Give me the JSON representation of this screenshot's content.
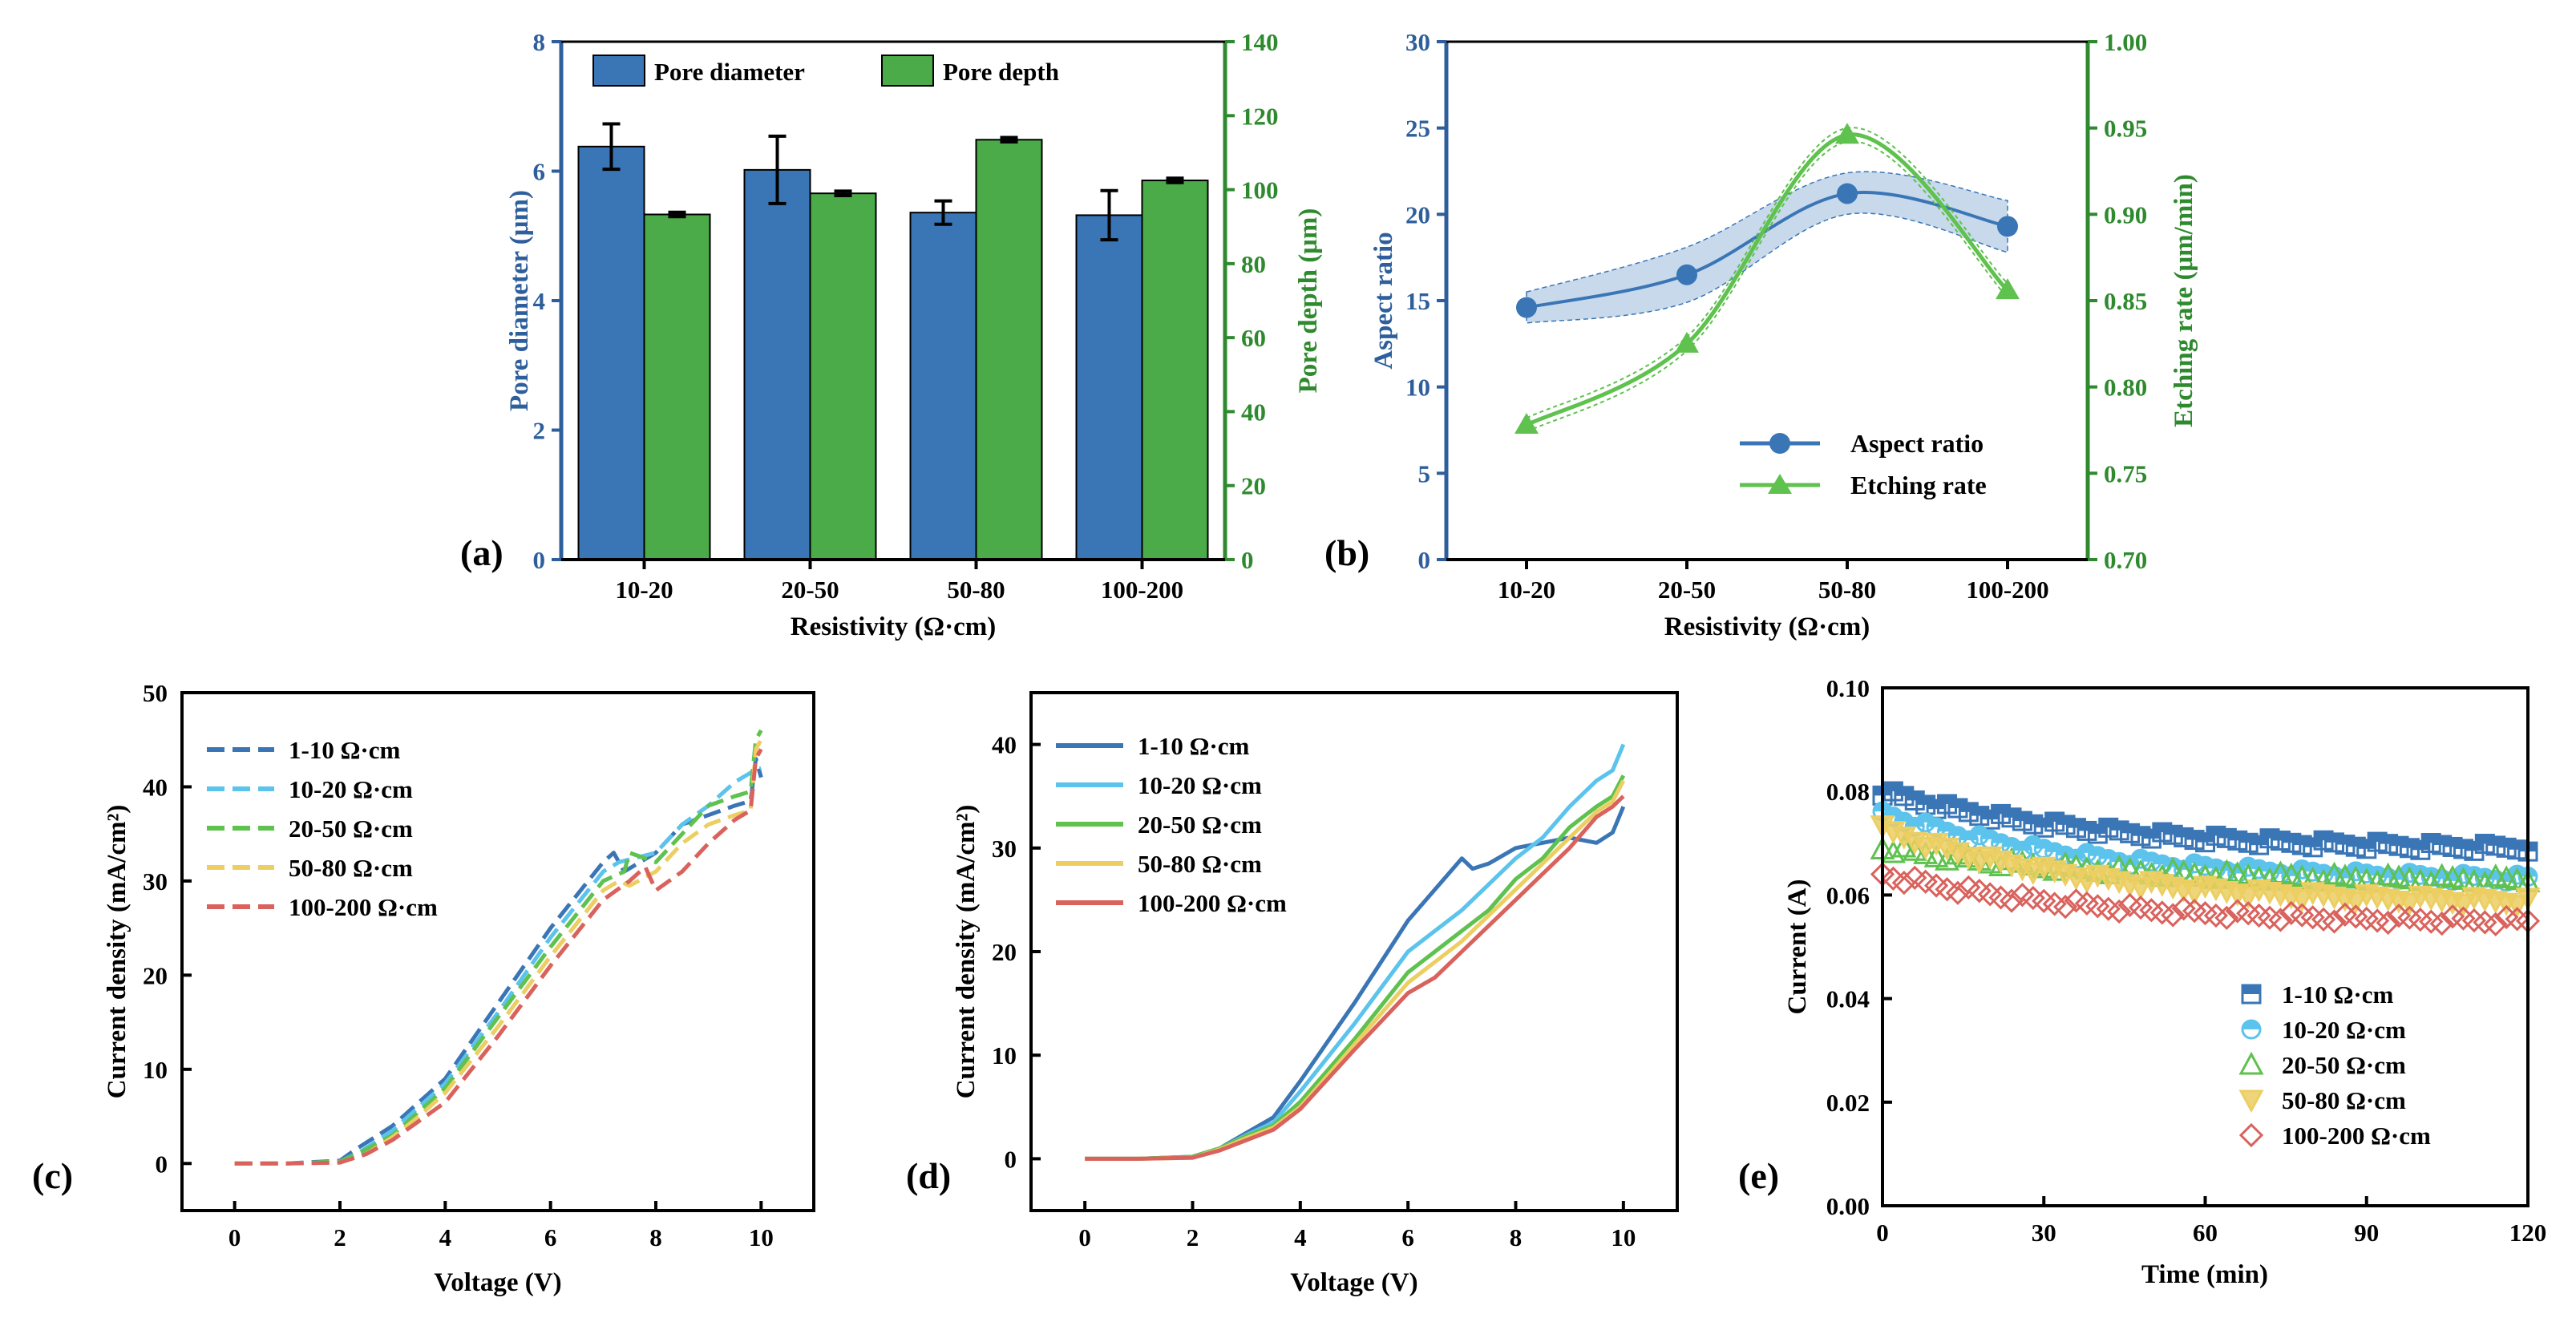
{
  "colors": {
    "blue": "#3a76b6",
    "green": "#4bab48",
    "lightblue": "#5bc3ec",
    "lightgreen": "#5fc14e",
    "yellow": "#ecce62",
    "red": "#d9625d",
    "axis": "#000000",
    "blueaxis": "#2e5f9c",
    "greenaxis": "#2f8a2f"
  },
  "chart_data": [
    {
      "panel": "(a)",
      "type": "bar",
      "categories": [
        "10-20",
        "20-50",
        "50-80",
        "100-200"
      ],
      "xlabel": "Resistivity (Ω·cm)",
      "ylabel": "Pore diameter (μm)",
      "y2label": "Pore depth (μm)",
      "ylim": [
        0,
        8
      ],
      "y2lim": [
        0,
        140
      ],
      "yticks": [
        "0",
        "2",
        "4",
        "6",
        "8"
      ],
      "y2ticks": [
        "0",
        "20",
        "40",
        "60",
        "80",
        "100",
        "120",
        "140"
      ],
      "series": [
        {
          "name": "Pore diameter",
          "axis": "left",
          "values": [
            6.38,
            6.02,
            5.36,
            5.32
          ],
          "errors": [
            0.35,
            0.52,
            0.18,
            0.38
          ]
        },
        {
          "name": "Pore depth",
          "axis": "right",
          "values": [
            93.3,
            99.0,
            113.5,
            102.5
          ],
          "errors": [
            0.6,
            0.6,
            0.6,
            0.6
          ]
        }
      ]
    },
    {
      "panel": "(b)",
      "type": "line",
      "categories": [
        "10-20",
        "20-50",
        "50-80",
        "100-200"
      ],
      "xlabel": "Resistivity (Ω·cm)",
      "ylabel": "Aspect ratio",
      "y2label": "Etching rate (μm/min)",
      "ylim": [
        0,
        30
      ],
      "y2lim": [
        0.7,
        1.0
      ],
      "yticks": [
        "0",
        "5",
        "10",
        "15",
        "20",
        "25",
        "30"
      ],
      "y2ticks": [
        "0.70",
        "0.75",
        "0.80",
        "0.85",
        "0.90",
        "0.95",
        "1.00"
      ],
      "legend_position": "lower-right",
      "series": [
        {
          "name": "Aspect ratio",
          "axis": "left",
          "values": [
            14.6,
            16.5,
            21.2,
            19.3
          ]
        },
        {
          "name": "Etching rate",
          "axis": "right",
          "values": [
            0.778,
            0.825,
            0.946,
            0.856
          ]
        }
      ]
    },
    {
      "panel": "(c)",
      "type": "line",
      "style": "dashed",
      "xlabel": "Voltage (V)",
      "ylabel": "Current density (mA/cm²)",
      "xlim": [
        -1,
        11
      ],
      "ylim": [
        -5,
        50
      ],
      "xticks": [
        "0",
        "2",
        "4",
        "6",
        "8",
        "10"
      ],
      "yticks": [
        "0",
        "10",
        "20",
        "30",
        "40",
        "50"
      ],
      "legend_position": "top-left",
      "series": [
        {
          "name": "1-10 Ω·cm",
          "x": [
            0,
            1,
            2,
            2.3,
            3,
            3.5,
            4,
            5,
            6,
            7,
            7.2,
            7.4,
            8,
            8.5,
            9,
            9.5,
            9.8,
            9.9,
            10
          ],
          "y": [
            0,
            0,
            0.3,
            1.5,
            4,
            6.5,
            9,
            17,
            25,
            32,
            33,
            31,
            33,
            36,
            37,
            38,
            38.5,
            43,
            41
          ]
        },
        {
          "name": "10-20 Ω·cm",
          "x": [
            0,
            1,
            2,
            2.4,
            3,
            3.5,
            4,
            5,
            6,
            7,
            7.3,
            8,
            8.5,
            9,
            9.5,
            9.8,
            10
          ],
          "y": [
            0,
            0,
            0.2,
            1.3,
            3.5,
            6,
            8.5,
            16,
            24,
            31,
            32,
            33,
            36,
            38,
            40.5,
            41.5,
            42
          ]
        },
        {
          "name": "20-50 Ω·cm",
          "x": [
            0,
            1,
            2,
            2.4,
            3,
            3.5,
            4,
            5,
            6,
            7,
            7.4,
            7.5,
            8,
            8.5,
            9,
            9.5,
            9.8,
            9.9,
            10
          ],
          "y": [
            0,
            0,
            0.2,
            1.2,
            3,
            5.5,
            8,
            15.5,
            23,
            30,
            31,
            33,
            32,
            35,
            38,
            39,
            39.5,
            45,
            46
          ]
        },
        {
          "name": "50-80 Ω·cm",
          "x": [
            0,
            1,
            2,
            2.5,
            3,
            3.5,
            4,
            5,
            6,
            7,
            7.3,
            7.5,
            8,
            8.5,
            9,
            9.5,
            9.8,
            9.9,
            10
          ],
          "y": [
            0,
            0,
            0.1,
            1,
            2.8,
            5,
            7.5,
            14.5,
            22,
            29,
            30,
            29.5,
            31,
            34,
            36,
            37,
            37.5,
            44,
            45
          ]
        },
        {
          "name": "100-200 Ω·cm",
          "x": [
            0,
            1,
            2,
            2.5,
            3,
            3.5,
            4,
            5,
            6,
            7,
            7.5,
            7.8,
            8,
            8.5,
            9,
            9.5,
            9.8,
            9.9,
            10
          ],
          "y": [
            0,
            0,
            0.1,
            1,
            2.5,
            4.5,
            6.5,
            13.5,
            21,
            28,
            30,
            31.5,
            29,
            31,
            34,
            36.5,
            37.5,
            43,
            44
          ]
        }
      ]
    },
    {
      "panel": "(d)",
      "type": "line",
      "style": "solid",
      "xlabel": "Voltage (V)",
      "ylabel": "Current density (mA/cm²)",
      "xlim": [
        -1,
        11
      ],
      "ylim": [
        -5,
        45
      ],
      "xticks": [
        "0",
        "2",
        "4",
        "6",
        "8",
        "10"
      ],
      "yticks": [
        "0",
        "10",
        "20",
        "30",
        "40"
      ],
      "legend_position": "top-left",
      "series": [
        {
          "name": "1-10 Ω·cm",
          "x": [
            0,
            1,
            2,
            2.5,
            3,
            3.5,
            4,
            5,
            6,
            6.5,
            7,
            7.2,
            7.5,
            8,
            8.5,
            9,
            9.5,
            9.8,
            10
          ],
          "y": [
            0,
            0,
            0.2,
            1,
            2.5,
            4,
            7.5,
            15,
            23,
            26,
            29,
            28,
            28.5,
            30,
            30.5,
            31,
            30.5,
            31.5,
            34
          ]
        },
        {
          "name": "10-20 Ω·cm",
          "x": [
            0,
            1,
            2,
            2.5,
            3,
            3.5,
            4,
            5,
            6,
            6.5,
            7,
            7.5,
            8,
            8.5,
            9,
            9.5,
            9.8,
            10
          ],
          "y": [
            0,
            0,
            0.2,
            1,
            2.3,
            3.5,
            6.5,
            13,
            20,
            22,
            24,
            26.5,
            29,
            31,
            34,
            36.5,
            37.5,
            40
          ]
        },
        {
          "name": "20-50 Ω·cm",
          "x": [
            0,
            1,
            2,
            2.5,
            3,
            3.5,
            4,
            5,
            6,
            6.5,
            7,
            7.5,
            8,
            8.5,
            9,
            9.5,
            9.8,
            10
          ],
          "y": [
            0,
            0,
            0.2,
            1,
            2.2,
            3.2,
            5.5,
            11.5,
            18,
            20,
            22,
            24,
            27,
            29,
            32,
            34,
            35,
            37
          ]
        },
        {
          "name": "50-80 Ω·cm",
          "x": [
            0,
            1,
            2,
            2.5,
            3,
            3.5,
            4,
            5,
            6,
            6.5,
            7,
            7.5,
            8,
            8.5,
            9,
            9.5,
            9.8,
            10
          ],
          "y": [
            0,
            0,
            0.1,
            0.9,
            2,
            3,
            5,
            11,
            17,
            19,
            21,
            23.5,
            26,
            28.5,
            31,
            33.5,
            34.5,
            36.5
          ]
        },
        {
          "name": "100-200 Ω·cm",
          "x": [
            0,
            1,
            2,
            2.5,
            3,
            3.5,
            4,
            5,
            6,
            6.5,
            7,
            7.5,
            8,
            8.5,
            9,
            9.5,
            9.8,
            10
          ],
          "y": [
            0,
            0,
            0.1,
            0.8,
            1.8,
            2.8,
            4.8,
            10.5,
            16,
            17.5,
            20,
            22.5,
            25,
            27.5,
            30,
            33,
            34,
            35
          ]
        }
      ]
    },
    {
      "panel": "(e)",
      "type": "scatter",
      "xlabel": "Time (min)",
      "ylabel": "Current (A)",
      "xlim": [
        0,
        120
      ],
      "ylim": [
        0,
        0.1
      ],
      "xticks": [
        "0",
        "30",
        "60",
        "90",
        "120"
      ],
      "yticks": [
        "0.00",
        "0.02",
        "0.04",
        "0.06",
        "0.08",
        "0.10"
      ],
      "legend_position": "lower-center",
      "series": [
        {
          "name": "1-10 Ω·cm",
          "marker": "square",
          "start": 0.0805,
          "end": 0.0685
        },
        {
          "name": "10-20 Ω·cm",
          "marker": "circle",
          "start": 0.0765,
          "end": 0.0625
        },
        {
          "name": "20-50 Ω·cm",
          "marker": "triangle-up",
          "start": 0.0695,
          "end": 0.0625
        },
        {
          "name": "50-80 Ω·cm",
          "marker": "triangle-down",
          "start": 0.0735,
          "end": 0.058
        },
        {
          "name": "100-200 Ω·cm",
          "marker": "diamond",
          "start": 0.0645,
          "end": 0.0545
        }
      ]
    }
  ]
}
